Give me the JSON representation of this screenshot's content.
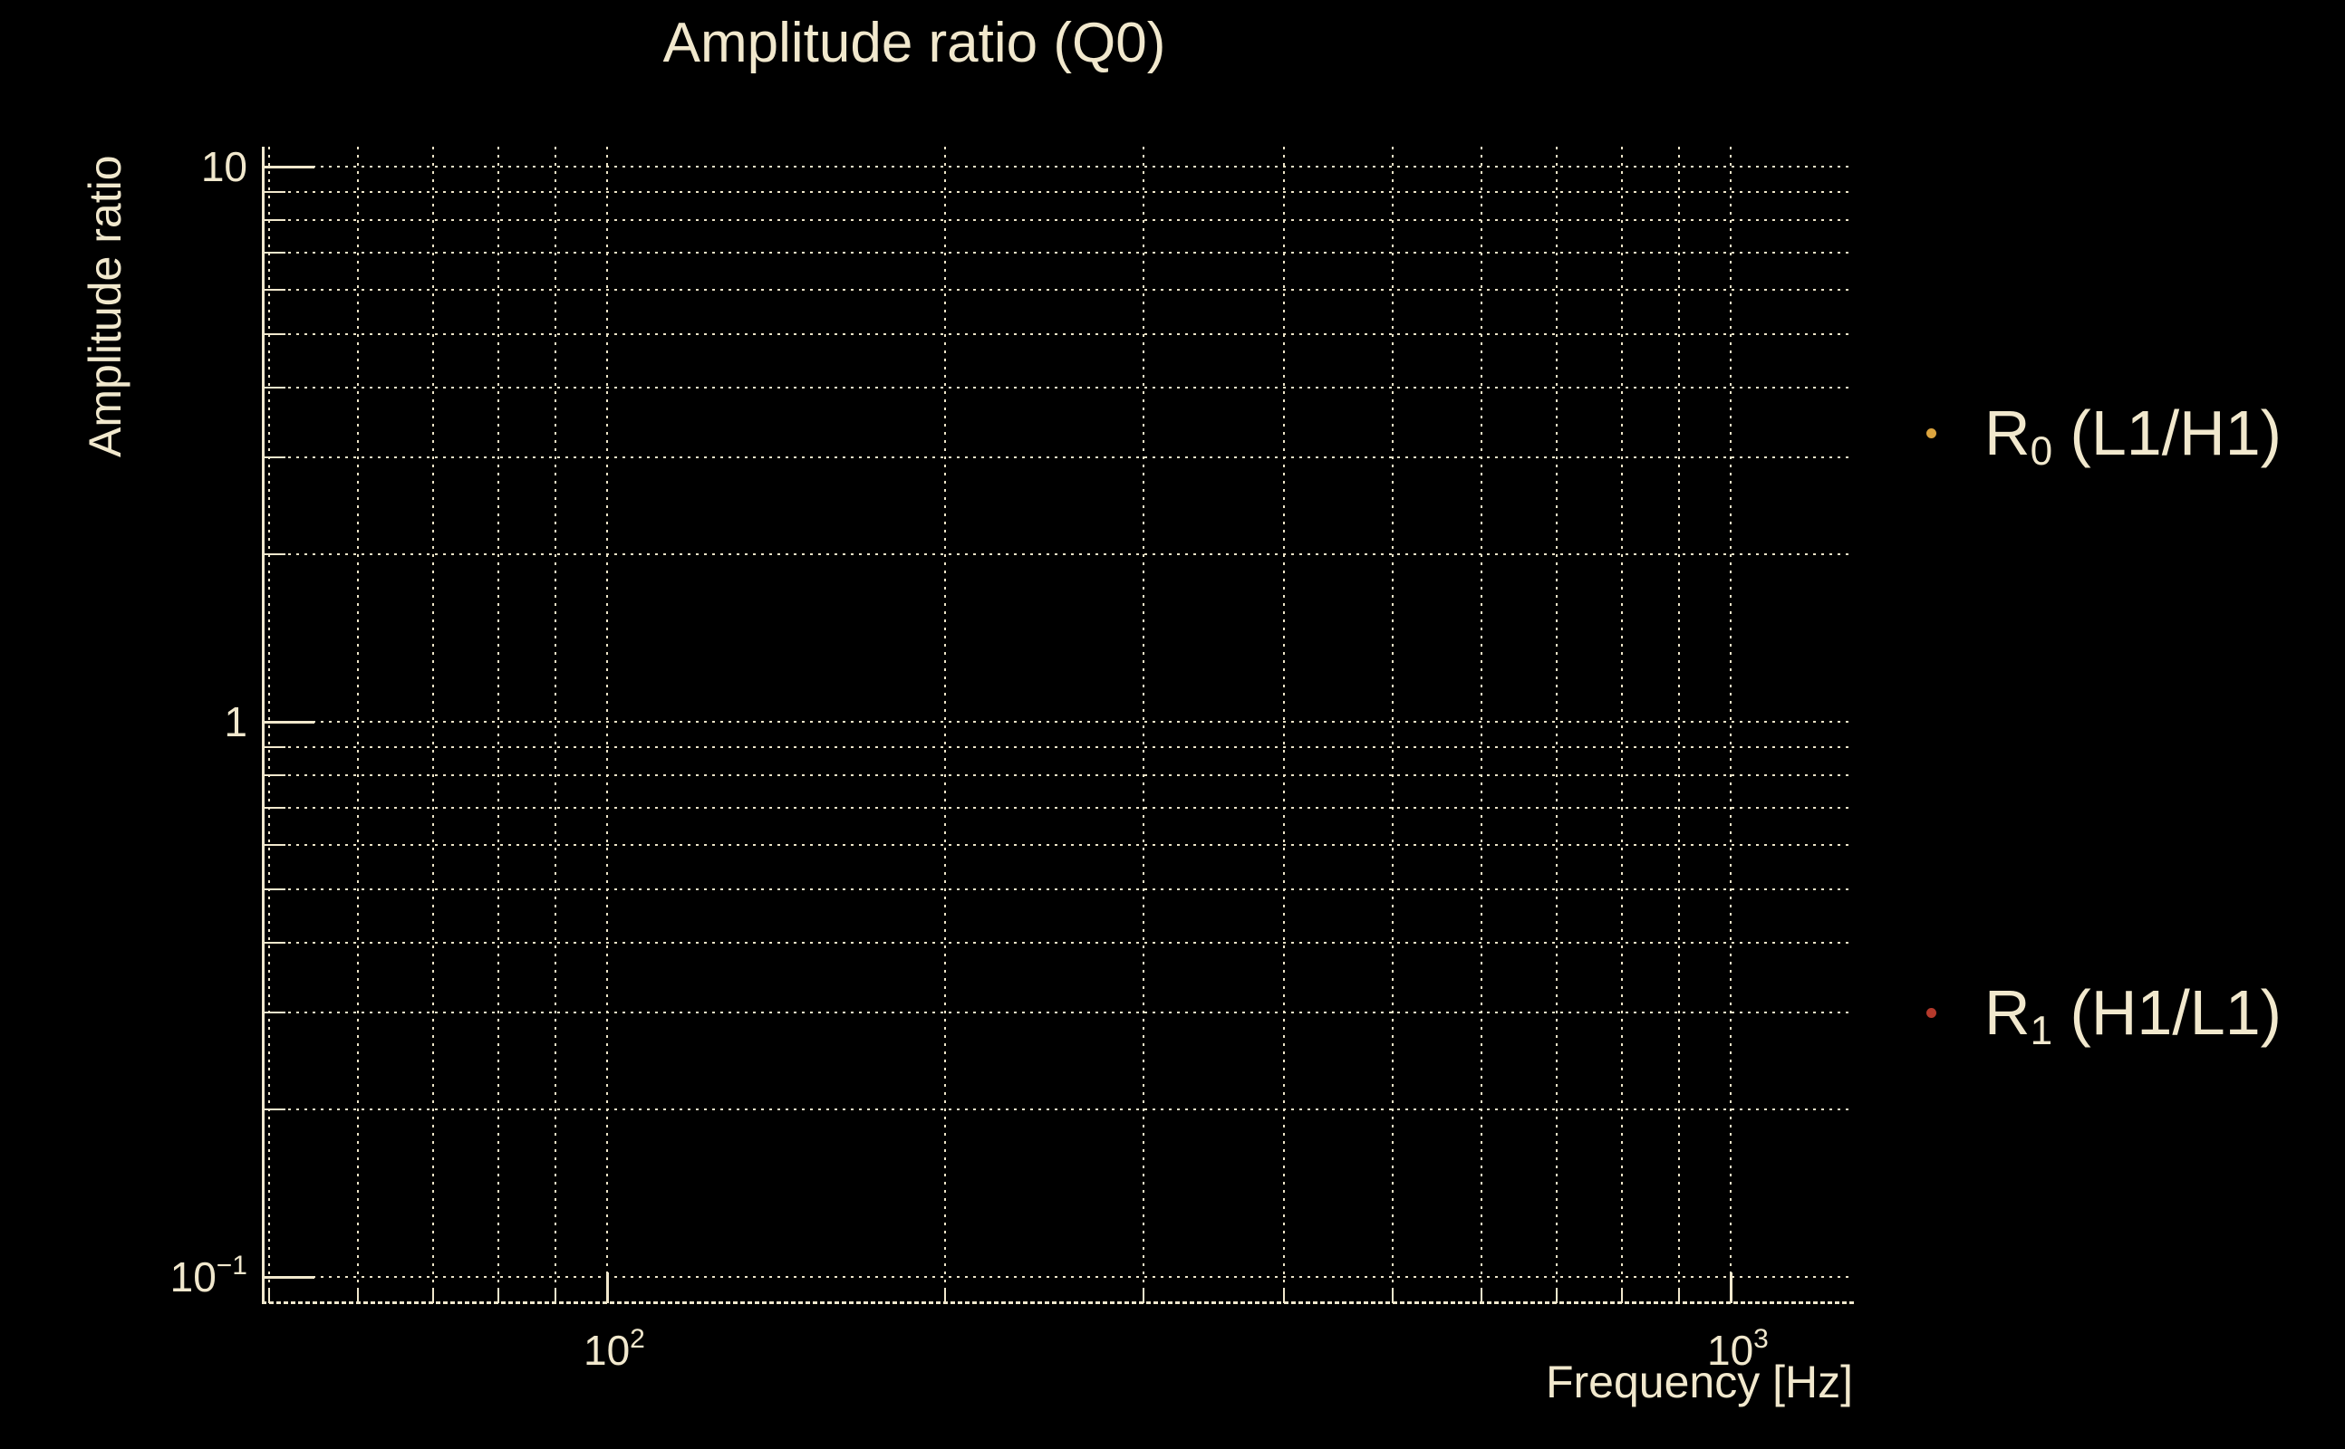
{
  "colors": {
    "background": "#000000",
    "text": "#F1E8CD",
    "grid": "#EDE4C8"
  },
  "chart_data": {
    "type": "scatter",
    "title": "Amplitude ratio (Q0)",
    "xlabel": "Frequency [Hz]",
    "ylabel": "Amplitude ratio",
    "x_scale": "log",
    "y_scale": "log",
    "xlim": [
      49.5,
      1285
    ],
    "ylim": [
      0.09,
      10.9
    ],
    "grid": {
      "style": "dotted",
      "major": true,
      "minor": true
    },
    "x_major_ticks": [
      100,
      1000
    ],
    "x_minor_ticks": [
      50,
      60,
      70,
      80,
      90,
      200,
      300,
      400,
      500,
      600,
      700,
      800,
      900
    ],
    "y_major_ticks": [
      10,
      1,
      0.1
    ],
    "y_minor_ticks": [
      9,
      8,
      7,
      6,
      5,
      4,
      3,
      2,
      0.9,
      0.8,
      0.7,
      0.6,
      0.5,
      0.4,
      0.3,
      0.2
    ],
    "x_tick_labels": [
      {
        "value": 100,
        "base": "10",
        "sup": "2"
      },
      {
        "value": 1000,
        "base": "10",
        "sup": "3"
      }
    ],
    "y_tick_labels": [
      {
        "value": 10,
        "base": "10",
        "sup": ""
      },
      {
        "value": 1,
        "base": "1",
        "sup": ""
      },
      {
        "value": 0.1,
        "base": "10",
        "sup": "−1"
      }
    ],
    "series": [
      {
        "name": "R0 (L1/H1)",
        "legend": {
          "pre": "R",
          "sub": "0",
          "post": " (L1/H1)"
        },
        "marker": "dot",
        "marker_color": "#DCA43E",
        "points": []
      },
      {
        "name": "R1 (H1/L1)",
        "legend": {
          "pre": "R",
          "sub": "1",
          "post": " (H1/L1)"
        },
        "marker": "dot",
        "marker_color": "#B5392B",
        "points": []
      }
    ],
    "legend_position": "outside-right"
  }
}
